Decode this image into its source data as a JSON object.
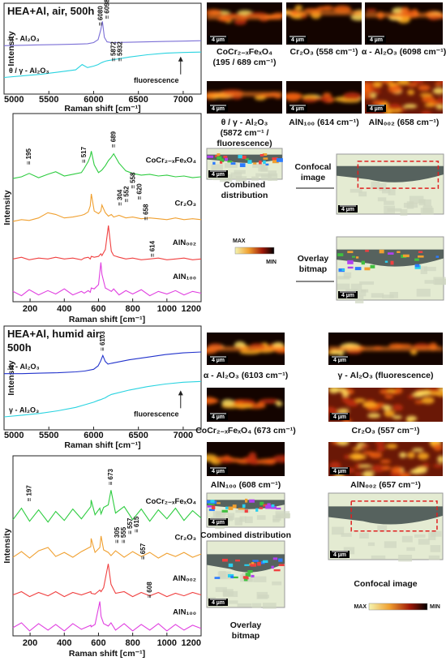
{
  "chart_data": [
    {
      "type": "line",
      "title": "HEA+Al, air, 500h",
      "x_label": "Raman shift [cm⁻¹]",
      "y_label": "Intensity",
      "x": [
        5000,
        5200,
        5400,
        5600,
        5800,
        5872,
        5932,
        6000,
        6050,
        6080,
        6098,
        6120,
        6150,
        6200,
        6400,
        6600,
        6800,
        7000,
        7200
      ],
      "xlim": [
        5000,
        7200
      ],
      "xticks": [
        5000,
        5500,
        6000,
        6500,
        7000
      ],
      "ylim": [
        0,
        12
      ],
      "series": [
        {
          "name": "α - Al₂O₃",
          "color": "#7b6fd6",
          "values": [
            6.4,
            6.45,
            6.5,
            6.55,
            6.6,
            6.62,
            6.65,
            6.8,
            7.2,
            8.5,
            9.6,
            7.5,
            6.9,
            6.8,
            6.85,
            6.9,
            6.95,
            7.0,
            7.05
          ]
        },
        {
          "name": "θ / γ - Al₂O₃",
          "color": "#29d3e0",
          "values": [
            2.2,
            2.4,
            2.6,
            2.9,
            3.2,
            3.9,
            3.5,
            3.7,
            3.9,
            4.1,
            4.2,
            4.3,
            4.4,
            4.5,
            4.9,
            5.2,
            5.4,
            5.5,
            5.55
          ]
        }
      ],
      "annotations": [
        {
          "label": "≡ 6080",
          "x": 6080,
          "y": 9.0
        },
        {
          "label": "≡ 6098",
          "x": 6098,
          "y": 9.9
        },
        {
          "label": "≡ 5872",
          "x": 5872,
          "y": 4.3
        },
        {
          "label": "≡ 5932",
          "x": 5932,
          "y": 4.3
        },
        {
          "label": "fluorescence",
          "x": 6700,
          "y": 2.6
        }
      ]
    },
    {
      "type": "line",
      "x_label": "Raman shift [cm⁻¹]",
      "y_label": "Intensity",
      "x": [
        100,
        150,
        195,
        250,
        304,
        350,
        400,
        450,
        500,
        517,
        540,
        552,
        558,
        575,
        600,
        614,
        620,
        640,
        658,
        675,
        689,
        720,
        760,
        800,
        850,
        900,
        950,
        1000,
        1050,
        1100,
        1150,
        1200
      ],
      "xlim": [
        100,
        1200
      ],
      "xticks": [
        200,
        400,
        600,
        800,
        1000,
        1200
      ],
      "ylim": [
        0,
        22
      ],
      "series": [
        {
          "name": "CoCr₂₋ₓFeₓO₄",
          "color": "#2ecc40",
          "values": [
            14.4,
            14.6,
            15.0,
            14.5,
            14.9,
            15.2,
            14.7,
            14.9,
            15.1,
            15.6,
            16.4,
            17.0,
            17.6,
            16.0,
            15.1,
            15.3,
            15.4,
            15.9,
            16.5,
            16.9,
            17.3,
            16.2,
            15.3,
            15.0,
            14.8,
            14.9,
            14.7,
            14.8,
            14.6,
            14.7,
            14.5,
            14.6
          ]
        },
        {
          "name": "Cr₂O₃",
          "color": "#f0a030",
          "values": [
            9.4,
            9.6,
            9.5,
            9.8,
            10.4,
            10.2,
            9.8,
            9.9,
            10.1,
            10.2,
            10.5,
            11.2,
            12.6,
            10.6,
            10.3,
            10.6,
            11.3,
            10.4,
            10.0,
            10.2,
            9.9,
            10.1,
            9.8,
            9.9,
            9.7,
            9.8,
            9.7,
            9.6,
            9.8,
            9.6,
            9.7,
            9.6
          ]
        },
        {
          "name": "AlN₀₀₂",
          "color": "#f04040",
          "values": [
            5.0,
            5.2,
            4.9,
            5.1,
            5.0,
            5.2,
            5.0,
            5.1,
            4.9,
            5.1,
            5.2,
            5.0,
            5.3,
            5.2,
            5.3,
            5.6,
            5.4,
            6.1,
            8.9,
            5.9,
            5.4,
            5.2,
            5.0,
            5.1,
            4.9,
            5.0,
            5.1,
            4.9,
            5.0,
            5.1,
            4.9,
            5.0
          ]
        },
        {
          "name": "AlN₁₀₀",
          "color": "#e040e0",
          "values": [
            1.2,
            0.7,
            1.4,
            0.8,
            1.3,
            0.9,
            1.5,
            0.8,
            1.2,
            1.0,
            1.3,
            1.1,
            1.6,
            1.5,
            2.0,
            4.6,
            3.2,
            1.6,
            1.4,
            1.2,
            1.5,
            0.8,
            1.3,
            0.9,
            1.4,
            0.7,
            1.2,
            0.9,
            1.3,
            0.8,
            1.2,
            1.0
          ]
        }
      ],
      "annotations": [
        {
          "label": "≡ 195",
          "x": 195,
          "y": 16.0
        },
        {
          "label": "≡ 517",
          "x": 517,
          "y": 16.2
        },
        {
          "label": "≡ 689",
          "x": 689,
          "y": 18.0
        },
        {
          "label": "≡ 304",
          "x": 304,
          "y": 11.2
        },
        {
          "label": "≡ 552",
          "x": 552,
          "y": 11.6
        },
        {
          "label": "≡ 558",
          "x": 558,
          "y": 13.2
        },
        {
          "label": "≡ 620",
          "x": 620,
          "y": 11.9
        },
        {
          "label": "≡ 658",
          "x": 658,
          "y": 9.5
        },
        {
          "label": "≡ 614",
          "x": 614,
          "y": 5.2
        }
      ]
    },
    {
      "type": "line",
      "title": "HEA+Al, humid air, 500h",
      "x_label": "Raman shift [cm⁻¹]",
      "y_label": "Intensity",
      "x": [
        5000,
        5200,
        5400,
        5600,
        5800,
        5900,
        6000,
        6050,
        6080,
        6103,
        6130,
        6160,
        6200,
        6400,
        6600,
        6800,
        7000,
        7200
      ],
      "xlim": [
        5000,
        7200
      ],
      "xticks": [
        5000,
        5500,
        6000,
        6500,
        7000
      ],
      "ylim": [
        0,
        12
      ],
      "series": [
        {
          "name": "α - Al₂O₃",
          "color": "#2233cc",
          "values": [
            6.5,
            6.5,
            6.55,
            6.6,
            6.7,
            6.8,
            7.0,
            7.4,
            8.0,
            8.6,
            7.9,
            7.6,
            7.7,
            8.1,
            8.4,
            8.7,
            8.9,
            9.0
          ]
        },
        {
          "name": "γ - Al₂O₃",
          "color": "#29d3e0",
          "values": [
            1.5,
            1.7,
            1.9,
            2.2,
            2.6,
            2.9,
            3.2,
            3.4,
            3.5,
            3.6,
            3.7,
            3.9,
            4.1,
            4.6,
            5.0,
            5.3,
            5.5,
            5.6
          ]
        }
      ],
      "annotations": [
        {
          "label": "≡ 6103",
          "x": 6103,
          "y": 9.1
        },
        {
          "label": "fluorescence",
          "x": 6700,
          "y": 2.5
        }
      ]
    },
    {
      "type": "line",
      "x_label": "Raman shift [cm⁻¹]",
      "y_label": "Intensity",
      "x": [
        100,
        150,
        197,
        250,
        305,
        350,
        400,
        450,
        500,
        555,
        557,
        580,
        608,
        615,
        630,
        657,
        673,
        700,
        750,
        800,
        850,
        900,
        950,
        1000,
        1050,
        1100,
        1150,
        1200
      ],
      "xlim": [
        100,
        1200
      ],
      "xticks": [
        200,
        400,
        600,
        800,
        1000,
        1200
      ],
      "ylim": [
        0,
        22
      ],
      "series": [
        {
          "name": "CoCr₂₋ₓFeₓO₄",
          "color": "#2ecc40",
          "values": [
            14.2,
            15.6,
            14.0,
            15.4,
            13.9,
            15.2,
            14.1,
            15.5,
            14.3,
            15.8,
            16.6,
            14.8,
            15.6,
            14.9,
            15.7,
            16.0,
            17.8,
            15.0,
            15.8,
            14.2,
            15.5,
            14.0,
            15.4,
            14.3,
            15.6,
            14.1,
            15.3,
            14.4
          ]
        },
        {
          "name": "Cr₂O₃",
          "color": "#f0a030",
          "values": [
            9.6,
            10.3,
            9.5,
            10.4,
            10.8,
            9.7,
            10.2,
            9.6,
            10.3,
            10.9,
            11.9,
            10.2,
            10.8,
            12.2,
            10.5,
            10.2,
            9.8,
            10.4,
            9.6,
            10.3,
            9.7,
            10.2,
            9.5,
            10.1,
            9.7,
            10.2,
            9.6,
            10.0
          ]
        },
        {
          "name": "AlN₀₀₂",
          "color": "#f04040",
          "values": [
            5.0,
            5.4,
            4.8,
            5.3,
            4.9,
            5.4,
            4.8,
            5.3,
            5.0,
            5.4,
            5.2,
            5.1,
            5.6,
            5.4,
            5.9,
            8.8,
            6.3,
            5.2,
            5.4,
            4.8,
            5.3,
            4.9,
            5.3,
            4.8,
            5.2,
            4.9,
            5.3,
            5.0
          ]
        },
        {
          "name": "AlN₁₀₀",
          "color": "#e040e0",
          "values": [
            1.0,
            1.6,
            0.6,
            1.5,
            0.7,
            1.4,
            0.6,
            1.5,
            0.8,
            1.3,
            1.1,
            1.4,
            4.2,
            2.4,
            1.5,
            1.2,
            1.6,
            0.7,
            1.5,
            0.6,
            1.4,
            0.7,
            1.5,
            0.6,
            1.4,
            0.7,
            1.3,
            0.9
          ]
        }
      ],
      "annotations": [
        {
          "label": "≡ 197",
          "x": 197,
          "y": 16.4
        },
        {
          "label": "≡ 673",
          "x": 673,
          "y": 18.4
        },
        {
          "label": "≡ 305",
          "x": 305,
          "y": 11.3
        },
        {
          "label": "≡ 555",
          "x": 555,
          "y": 11.3
        },
        {
          "label": "≡ 557",
          "x": 557,
          "y": 12.4
        },
        {
          "label": "≡ 615",
          "x": 615,
          "y": 12.6
        },
        {
          "label": "≡ 657",
          "x": 657,
          "y": 9.3
        },
        {
          "label": "≡ 608",
          "x": 608,
          "y": 4.6
        }
      ]
    }
  ],
  "scale_bar": "4 µm",
  "colorbar": {
    "max": "MAX",
    "min": "MIN"
  },
  "figures": [
    {
      "caption": [
        "CoCr₂₋ₓFeₓO₄",
        "(195 / 689 cm⁻¹)"
      ]
    },
    {
      "caption": [
        "Cr₂O₃ (558 cm⁻¹)"
      ]
    },
    {
      "caption": [
        "α - Al₂O₃ (6098 cm⁻¹)"
      ]
    },
    {
      "caption": [
        "θ / γ - Al₂O₃",
        "(5872 cm⁻¹ /",
        "fluorescence)"
      ]
    },
    {
      "caption": [
        "AlN₁₀₀ (614 cm⁻¹)"
      ]
    },
    {
      "caption": [
        "AlN₀₀₂ (658 cm⁻¹)"
      ]
    },
    {
      "caption": [
        "Combined",
        "distribution"
      ]
    },
    {
      "caption": [
        "Confocal",
        "image"
      ]
    },
    {
      "caption": [
        "Overlay",
        "bitmap"
      ]
    },
    {
      "caption": [
        "α - Al₂O₃ (6103 cm⁻¹)"
      ]
    },
    {
      "caption": [
        "γ - Al₂O₃ (fluorescence)"
      ]
    },
    {
      "caption": [
        "CoCr₂₋ₓFeₓO₄ (673 cm⁻¹)"
      ]
    },
    {
      "caption": [
        "Cr₂O₃ (557 cm⁻¹)"
      ]
    },
    {
      "caption": [
        "AlN₁₀₀ (608 cm⁻¹)"
      ]
    },
    {
      "caption": [
        "AlN₀₀₂ (657 cm⁻¹)"
      ]
    },
    {
      "caption": [
        "Combined distribution"
      ]
    },
    {
      "caption": [
        "Overlay",
        "bitmap"
      ]
    },
    {
      "caption": [
        "Confocal image"
      ]
    }
  ]
}
